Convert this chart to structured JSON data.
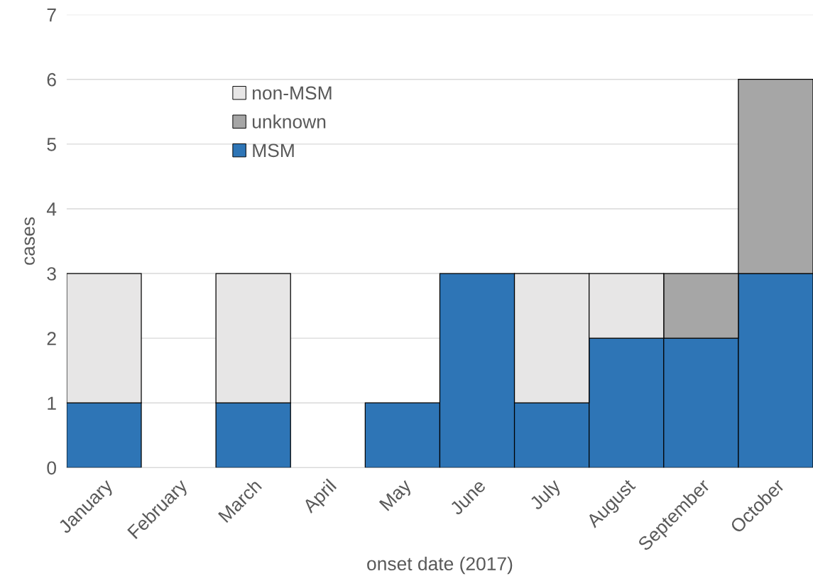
{
  "chart_data": {
    "type": "bar",
    "stacked": true,
    "xlabel": "onset date (2017)",
    "ylabel": "cases",
    "categories": [
      "January",
      "February",
      "March",
      "April",
      "May",
      "June",
      "July",
      "August",
      "September",
      "October"
    ],
    "series": [
      {
        "name": "MSM",
        "color": "#2e75b6",
        "values": [
          1,
          0,
          1,
          0,
          1,
          3,
          1,
          2,
          2,
          3
        ]
      },
      {
        "name": "unknown",
        "color": "#a6a6a6",
        "values": [
          0,
          0,
          0,
          0,
          0,
          0,
          0,
          0,
          1,
          3
        ]
      },
      {
        "name": "non-MSM",
        "color": "#e7e6e6",
        "values": [
          2,
          0,
          2,
          0,
          0,
          0,
          2,
          1,
          0,
          0
        ]
      }
    ],
    "ylim": [
      0,
      7
    ],
    "yticks": [
      0,
      1,
      2,
      3,
      4,
      5,
      6,
      7
    ],
    "grid": "y",
    "legend": "top left"
  }
}
